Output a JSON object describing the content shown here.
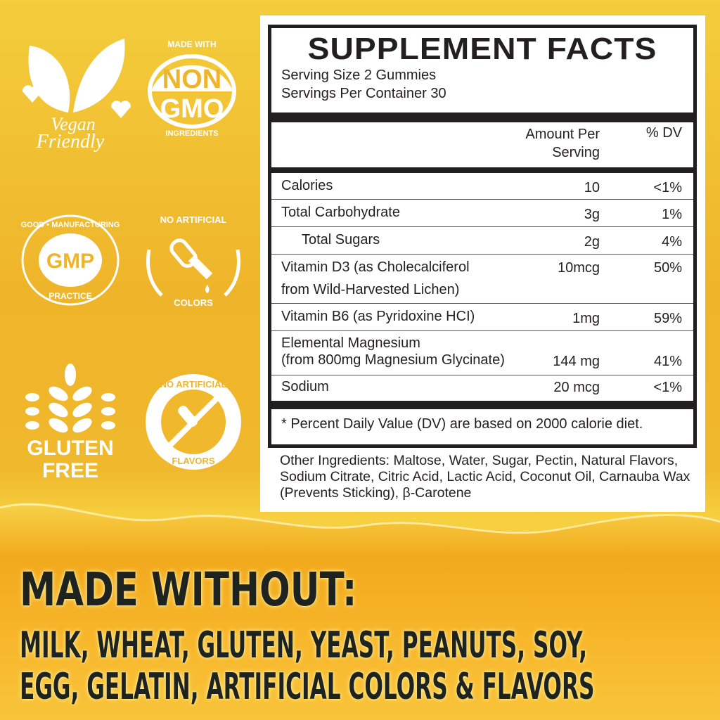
{
  "badges": {
    "vegan": [
      "Vegan",
      "Friendly"
    ],
    "nongmo": {
      "top": "MADE WITH",
      "big1": "NON",
      "big2": "GMO",
      "bottom": "INGREDIENTS"
    },
    "gmp": {
      "center": "GMP",
      "ring_top": "GOOD • MANUFACTURING",
      "ring_bottom": "PRACTICE"
    },
    "colors": {
      "top": "NO ARTIFICIAL",
      "bottom": "COLORS"
    },
    "gluten": [
      "GLUTEN",
      "FREE"
    ],
    "flavors": {
      "top": "NO ARTIFICIAL",
      "bottom": "FLAVORS"
    }
  },
  "facts": {
    "title": "SUPPLEMENT FACTS",
    "serving_size": "Serving Size 2 Gummies",
    "servings_per_container": "Servings Per Container 30",
    "col_amount": [
      "Amount Per",
      "Serving"
    ],
    "col_dv": "% DV",
    "rows": [
      {
        "name": "Calories",
        "amount": "10",
        "dv": "<1%"
      },
      {
        "name": "Total Carbohydrate",
        "amount": "3g",
        "dv": "1%"
      },
      {
        "name": "Total Sugars",
        "amount": "2g",
        "dv": "4%"
      },
      {
        "name": "Vitamin D3 (as Cholecalciferol",
        "name2": "from Wild-Harvested Lichen)",
        "amount": "10mcg",
        "dv": "50%"
      },
      {
        "name": "Vitamin B6 (as Pyridoxine HCI)",
        "amount": "1mg",
        "dv": "59%"
      },
      {
        "name": "Elemental Magnesium",
        "name2": "(from 800mg Magnesium Glycinate)",
        "amount": "144 mg",
        "dv": "41%"
      },
      {
        "name": "Sodium",
        "amount": "20 mcg",
        "dv": "<1%"
      }
    ],
    "footnote": "* Percent Daily Value (DV) are based on 2000 calorie diet.",
    "other_ingredients": "Other Ingredients: Maltose, Water, Sugar, Pectin, Natural Flavors, Sodium Citrate, Citric Acid, Lactic Acid, Coconut Oil, Carnauba Wax (Prevents Sticking), β-Carotene"
  },
  "made_without": {
    "heading": "MADE WITHOUT:",
    "line1": "MILK, WHEAT, GLUTEN, YEAST, PEANUTS, SOY,",
    "line2": "EGG, GELATIN, ARTIFICIAL COLORS & FLAVORS"
  },
  "colors": {
    "background": "#f0b82c",
    "liquid": "#f5a91e",
    "text": "#231f20"
  }
}
